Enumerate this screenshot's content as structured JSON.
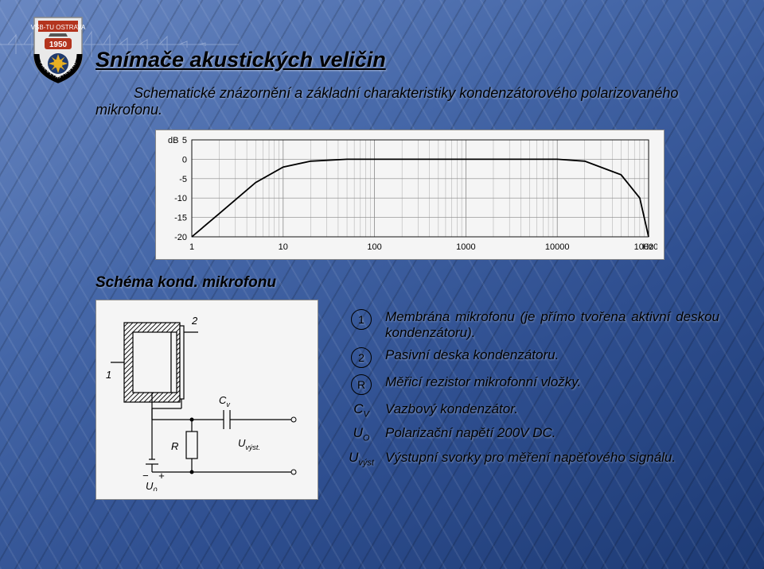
{
  "title": "Snímače akustických veličin",
  "intro": "Schematické znázornění a základní charakteristiky kondenzátorového polarizovaného mikrofonu.",
  "chart": {
    "type": "line",
    "y_unit": "dB",
    "x_unit": "Hz",
    "background_color": "#f5f5f5",
    "grid_color": "#888888",
    "curve_color": "#000000",
    "ylim": [
      -20,
      5
    ],
    "yticks": [
      -20,
      -15,
      -10,
      -5,
      0,
      5
    ],
    "x_scale": "log",
    "xticks": [
      1,
      10,
      100,
      1000,
      10000,
      100000
    ],
    "xtick_labels": [
      "1",
      "10",
      "100",
      "1000",
      "10000",
      "100000"
    ],
    "curve_points_freq_db": [
      [
        1,
        -20
      ],
      [
        2,
        -14
      ],
      [
        5,
        -6
      ],
      [
        10,
        -2
      ],
      [
        20,
        -0.5
      ],
      [
        50,
        0
      ],
      [
        100,
        0
      ],
      [
        1000,
        0
      ],
      [
        5000,
        0
      ],
      [
        10000,
        0
      ],
      [
        20000,
        -0.5
      ],
      [
        50000,
        -4
      ],
      [
        80000,
        -10
      ],
      [
        100000,
        -20
      ]
    ]
  },
  "schema": {
    "caption": "Schéma kond. mikrofonu",
    "labels": {
      "n1": "1",
      "n2": "2",
      "cv": "C",
      "cv_sub": "v",
      "r": "R",
      "u_out": "U",
      "u_out_sub": "výst.",
      "u0": "U",
      "u0_sub": "0"
    }
  },
  "legend": [
    {
      "sym_type": "circle",
      "sym": "1",
      "text": "Membrána mikrofonu (je přímo tvořena aktivní deskou kondenzátoru)."
    },
    {
      "sym_type": "circle",
      "sym": "2",
      "text": "Pasivní deska kondenzátoru."
    },
    {
      "sym_type": "circle",
      "sym": "R",
      "text": "Měřicí rezistor mikrofonní vložky."
    },
    {
      "sym_type": "sub",
      "sym": "C",
      "sub": "V",
      "text": "Vazbový kondenzátor."
    },
    {
      "sym_type": "sub",
      "sym": "U",
      "sub": "O",
      "text": "Polarizační napětí 200V DC."
    },
    {
      "sym_type": "sub",
      "sym": "U",
      "sub": "výst",
      "text": "Výstupní svorky pro měření napěťového signálu."
    }
  ],
  "badge_year": "1950"
}
